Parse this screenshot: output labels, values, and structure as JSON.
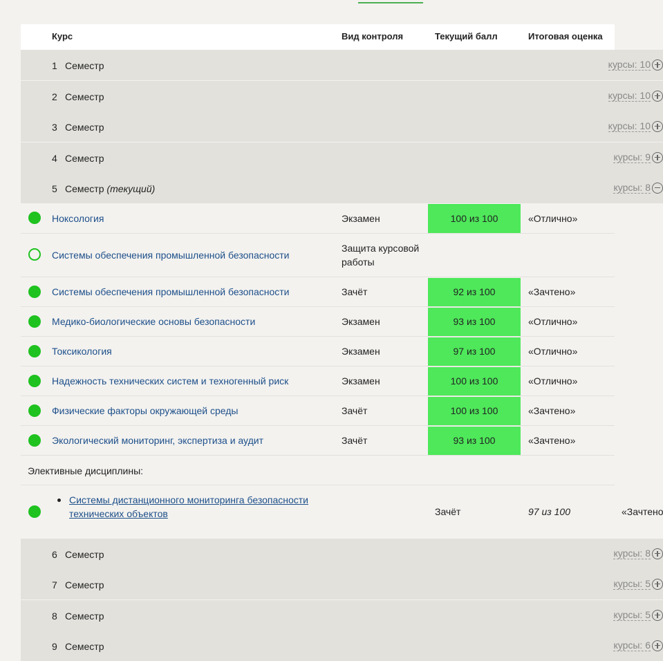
{
  "table_header": {
    "course": "Курс",
    "control_type": "Вид контроля",
    "current_score": "Текущий балл",
    "final_grade": "Итоговая оценка"
  },
  "semester_word": "Семестр",
  "current_label": "(текущий)",
  "semesters_before": [
    {
      "num": "1",
      "count": "курсы: 10"
    },
    {
      "num": "2",
      "count": "курсы: 10"
    },
    {
      "num": "3",
      "count": "курсы: 10"
    },
    {
      "num": "4",
      "count": "курсы: 9"
    }
  ],
  "current_semester": {
    "num": "5",
    "count": "курсы: 8"
  },
  "courses": [
    {
      "name": "Ноксология",
      "control": "Экзамен",
      "score": "100 из 100",
      "grade": "«Отлично»",
      "completed": true
    },
    {
      "name": "Системы обеспечения промышленной безопасности",
      "control": "Защита курсовой работы",
      "score": "",
      "grade": "",
      "completed": false
    },
    {
      "name": "Системы обеспечения промышленной безопасности",
      "control": "Зачёт",
      "score": "92 из 100",
      "grade": "«Зачтено»",
      "completed": true
    },
    {
      "name": "Медико-биологические основы безопасности",
      "control": "Экзамен",
      "score": "93 из 100",
      "grade": "«Отлично»",
      "completed": true
    },
    {
      "name": "Токсикология",
      "control": "Экзамен",
      "score": "97 из 100",
      "grade": "«Отлично»",
      "completed": true
    },
    {
      "name": "Надежность технических систем и техногенный риск",
      "control": "Экзамен",
      "score": "100 из 100",
      "grade": "«Отлично»",
      "completed": true
    },
    {
      "name": "Физические факторы окружающей среды",
      "control": "Зачёт",
      "score": "100 из 100",
      "grade": "«Зачтено»",
      "completed": true
    },
    {
      "name": "Экологический мониторинг, экспертиза и аудит",
      "control": "Зачёт",
      "score": "93 из 100",
      "grade": "«Зачтено»",
      "completed": true
    }
  ],
  "electives": {
    "label": "Элективные дисциплины:",
    "items": [
      {
        "name": "Системы дистанционного мониторинга безопасности технических объектов",
        "control": "Зачёт",
        "score": "97 из 100",
        "grade": "«Зачтено"
      }
    ]
  },
  "semesters_after": [
    {
      "num": "6",
      "count": "курсы: 8"
    },
    {
      "num": "7",
      "count": "курсы: 5"
    },
    {
      "num": "8",
      "count": "курсы: 5"
    },
    {
      "num": "9",
      "count": "курсы: 6"
    }
  ],
  "colors": {
    "score_fill": "#4ee85a",
    "status_dot": "#1fc21f",
    "link": "#1d4f8a",
    "semester_bg": "#e2e1dc",
    "page_bg": "#f3f2ef"
  }
}
